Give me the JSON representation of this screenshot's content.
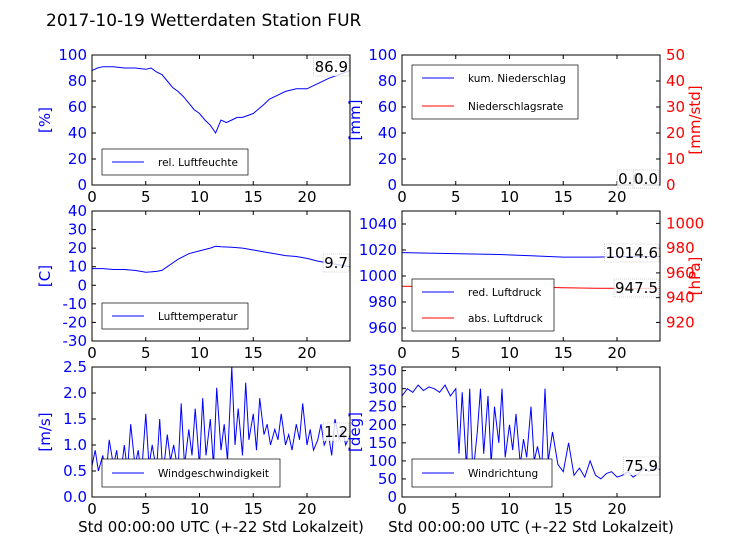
{
  "title": "2017-10-19 Wetterdaten Station FUR",
  "colors": {
    "primary": "#0000ff",
    "secondary": "#ff0000",
    "axis": "#000000"
  },
  "chart_data": [
    {
      "id": "humidity",
      "type": "line",
      "xlim": [
        0,
        24
      ],
      "xticks": [
        0,
        5,
        10,
        15,
        20
      ],
      "ylim": [
        0,
        100
      ],
      "yticks": [
        0,
        20,
        40,
        60,
        80,
        100
      ],
      "ylabel": "[%]",
      "current_value": "86.9",
      "legend": {
        "location": "lower-left",
        "entries": [
          "rel. Luftfeuchte"
        ]
      },
      "series": [
        {
          "name": "rel. Luftfeuchte",
          "color": "#0000ff",
          "x": [
            0,
            0.5,
            1,
            2,
            3,
            4,
            5,
            5.5,
            6,
            6.5,
            7,
            7.5,
            8,
            8.5,
            9,
            9.5,
            10,
            10.5,
            11,
            11.5,
            12,
            12.5,
            13,
            13.5,
            14,
            15,
            16,
            16.5,
            17,
            18,
            19,
            20,
            21,
            22,
            23,
            24
          ],
          "y": [
            88,
            90,
            91,
            91,
            90,
            90,
            89,
            90,
            87,
            85,
            80,
            75,
            72,
            68,
            63,
            58,
            55,
            50,
            46,
            40,
            50,
            48,
            50,
            52,
            52,
            55,
            62,
            66,
            68,
            72,
            74,
            74,
            78,
            82,
            85,
            88
          ]
        }
      ]
    },
    {
      "id": "precip",
      "type": "line",
      "xlim": [
        0,
        24
      ],
      "xticks": [
        0,
        5,
        10,
        15,
        20
      ],
      "ylim": [
        0,
        100
      ],
      "yticks": [
        0,
        20,
        40,
        60,
        80,
        100
      ],
      "ylabel": "[mm]",
      "y2lim": [
        0,
        50
      ],
      "y2ticks": [
        0,
        10,
        20,
        30,
        40,
        50
      ],
      "y2label": "[mm/std]",
      "current_value": "0.0",
      "current_value2": "0.0",
      "legend": {
        "location": "top-left",
        "entries": [
          "kum. Niederschlag",
          "Niederschlagsrate"
        ]
      },
      "series": [
        {
          "name": "kum. Niederschlag",
          "color": "#0000ff",
          "axis": "left",
          "x": [
            0,
            24
          ],
          "y": [
            0,
            0
          ]
        },
        {
          "name": "Niederschlagsrate",
          "color": "#ff0000",
          "axis": "right",
          "x": [
            0,
            24
          ],
          "y": [
            0,
            0
          ]
        }
      ]
    },
    {
      "id": "temperature",
      "type": "line",
      "xlim": [
        0,
        24
      ],
      "xticks": [
        0,
        5,
        10,
        15,
        20
      ],
      "ylim": [
        -30,
        40
      ],
      "yticks": [
        -30,
        -20,
        -10,
        0,
        10,
        20,
        30,
        40
      ],
      "ylabel": "[C]",
      "current_value": "9.7",
      "legend": {
        "location": "lower-left",
        "entries": [
          "Lufttemperatur"
        ]
      },
      "series": [
        {
          "name": "Lufttemperatur",
          "color": "#0000ff",
          "x": [
            0,
            1,
            2,
            3,
            4,
            5,
            5.5,
            6,
            6.5,
            7,
            7.5,
            8,
            9,
            10,
            11,
            11.5,
            12,
            13,
            14,
            15,
            16,
            17,
            18,
            19,
            20,
            21,
            22,
            23,
            24
          ],
          "y": [
            9,
            9,
            8.5,
            8.5,
            8,
            7,
            7.2,
            7.5,
            8,
            10,
            12,
            14,
            17,
            18.5,
            20,
            21,
            20.8,
            20.5,
            20,
            19,
            18,
            17,
            16,
            15.5,
            14.5,
            13,
            12,
            11,
            10
          ]
        }
      ]
    },
    {
      "id": "pressure",
      "type": "line",
      "xlim": [
        0,
        24
      ],
      "xticks": [
        0,
        5,
        10,
        15,
        20
      ],
      "ylim": [
        950,
        1050
      ],
      "yticks": [
        960,
        980,
        1000,
        1020,
        1040
      ],
      "y2lim": [
        905,
        1010
      ],
      "y2ticks": [
        920,
        940,
        960,
        980,
        1000
      ],
      "y2label": "[hPa]",
      "current_value": "1014.6",
      "current_value2": "947.5",
      "legend": {
        "location": "lower-left",
        "entries": [
          "red. Luftdruck",
          "abs. Luftdruck"
        ]
      },
      "series": [
        {
          "name": "red. Luftdruck",
          "color": "#0000ff",
          "axis": "left",
          "x": [
            0,
            3,
            6,
            9,
            12,
            15,
            18,
            21,
            24
          ],
          "y": [
            1018,
            1017.5,
            1017,
            1016.5,
            1015.5,
            1014.5,
            1014.5,
            1015,
            1015
          ]
        },
        {
          "name": "abs. Luftdruck",
          "color": "#ff0000",
          "axis": "right",
          "x": [
            0,
            3,
            6,
            9,
            12,
            15,
            18,
            21,
            24
          ],
          "y": [
            949.2,
            949,
            948.8,
            949,
            948.6,
            948,
            947.6,
            947.5,
            947.5
          ]
        }
      ]
    },
    {
      "id": "wind_speed",
      "type": "line",
      "xlim": [
        0,
        24
      ],
      "xticks": [
        0,
        5,
        10,
        15,
        20
      ],
      "ylim": [
        0,
        2.5
      ],
      "yticks": [
        0.0,
        0.5,
        1.0,
        1.5,
        2.0,
        2.5
      ],
      "ylabel": "[m/s]",
      "xlabel": "Std 00:00:00 UTC (+-22 Std Lokalzeit)",
      "current_value": "1.2",
      "legend": {
        "location": "lower-left",
        "entries": [
          "Windgeschwindigkeit"
        ]
      },
      "series": [
        {
          "name": "Windgeschwindigkeit",
          "color": "#0000ff",
          "x": [
            0,
            0.3,
            0.6,
            1,
            1.3,
            1.6,
            2,
            2.3,
            2.6,
            3,
            3.3,
            3.6,
            4,
            4.3,
            4.6,
            5,
            5.3,
            5.6,
            6,
            6.3,
            6.6,
            7,
            7.3,
            7.6,
            8,
            8.3,
            8.6,
            9,
            9.3,
            9.6,
            10,
            10.3,
            10.6,
            11,
            11.3,
            11.6,
            12,
            12.3,
            12.6,
            13,
            13.3,
            13.6,
            14,
            14.3,
            14.6,
            15,
            15.3,
            15.6,
            16,
            16.3,
            16.6,
            17,
            17.3,
            17.6,
            18,
            18.3,
            18.6,
            19,
            19.3,
            19.6,
            20,
            20.3,
            20.6,
            21,
            21.3,
            21.6,
            22,
            22.3,
            22.6,
            23,
            23.3,
            23.6,
            24
          ],
          "y": [
            0.6,
            0.9,
            0.5,
            0.8,
            0.4,
            1.1,
            0.6,
            0.9,
            0.3,
            1.0,
            0.5,
            1.4,
            0.6,
            0.9,
            0.4,
            1.6,
            0.6,
            1.0,
            0.5,
            1.5,
            0.4,
            1.2,
            0.7,
            1.0,
            0.5,
            1.8,
            0.6,
            1.3,
            0.8,
            1.7,
            0.6,
            1.9,
            0.8,
            1.5,
            0.6,
            2.1,
            0.9,
            1.4,
            0.7,
            2.5,
            1.0,
            1.7,
            0.8,
            2.2,
            1.1,
            1.6,
            0.9,
            1.9,
            1.2,
            1.4,
            1.0,
            1.3,
            1.1,
            1.6,
            1.0,
            1.2,
            0.9,
            1.4,
            1.1,
            1.8,
            1.0,
            1.3,
            0.9,
            1.1,
            1.4,
            1.0,
            1.2,
            0.8,
            1.5,
            1.1,
            1.3,
            1.0,
            1.2
          ]
        }
      ]
    },
    {
      "id": "wind_dir",
      "type": "line",
      "xlim": [
        0,
        24
      ],
      "xticks": [
        0,
        5,
        10,
        15,
        20
      ],
      "ylim": [
        0,
        360
      ],
      "yticks": [
        0,
        50,
        100,
        150,
        200,
        250,
        300,
        350
      ],
      "ylabel": "[deg]",
      "xlabel": "Std 00:00:00 UTC (+-22 Std Lokalzeit)",
      "current_value": "75.9",
      "legend": {
        "location": "lower-left",
        "entries": [
          "Windrichtung"
        ]
      },
      "series": [
        {
          "name": "Windrichtung",
          "color": "#0000ff",
          "x": [
            0,
            0.5,
            1,
            1.5,
            2,
            2.5,
            3,
            3.5,
            4,
            4.5,
            5,
            5.3,
            5.6,
            6,
            6.3,
            6.6,
            7,
            7.3,
            7.6,
            8,
            8.3,
            8.6,
            9,
            9.3,
            9.6,
            10,
            10.3,
            10.6,
            11,
            11.3,
            11.6,
            12,
            12.3,
            12.6,
            13,
            13.3,
            13.6,
            14,
            14.5,
            15,
            15.5,
            16,
            16.5,
            17,
            17.5,
            18,
            18.5,
            19,
            19.5,
            20,
            20.5,
            21,
            21.5,
            22,
            22.5,
            23,
            23.5,
            24
          ],
          "y": [
            280,
            300,
            290,
            310,
            295,
            305,
            300,
            290,
            310,
            280,
            300,
            120,
            290,
            80,
            300,
            60,
            180,
            300,
            120,
            280,
            90,
            250,
            150,
            300,
            110,
            200,
            130,
            230,
            90,
            160,
            110,
            250,
            100,
            140,
            80,
            300,
            100,
            180,
            90,
            70,
            150,
            60,
            80,
            55,
            100,
            60,
            50,
            65,
            70,
            55,
            60,
            70,
            55,
            65,
            80,
            70,
            85,
            75
          ]
        }
      ]
    }
  ]
}
